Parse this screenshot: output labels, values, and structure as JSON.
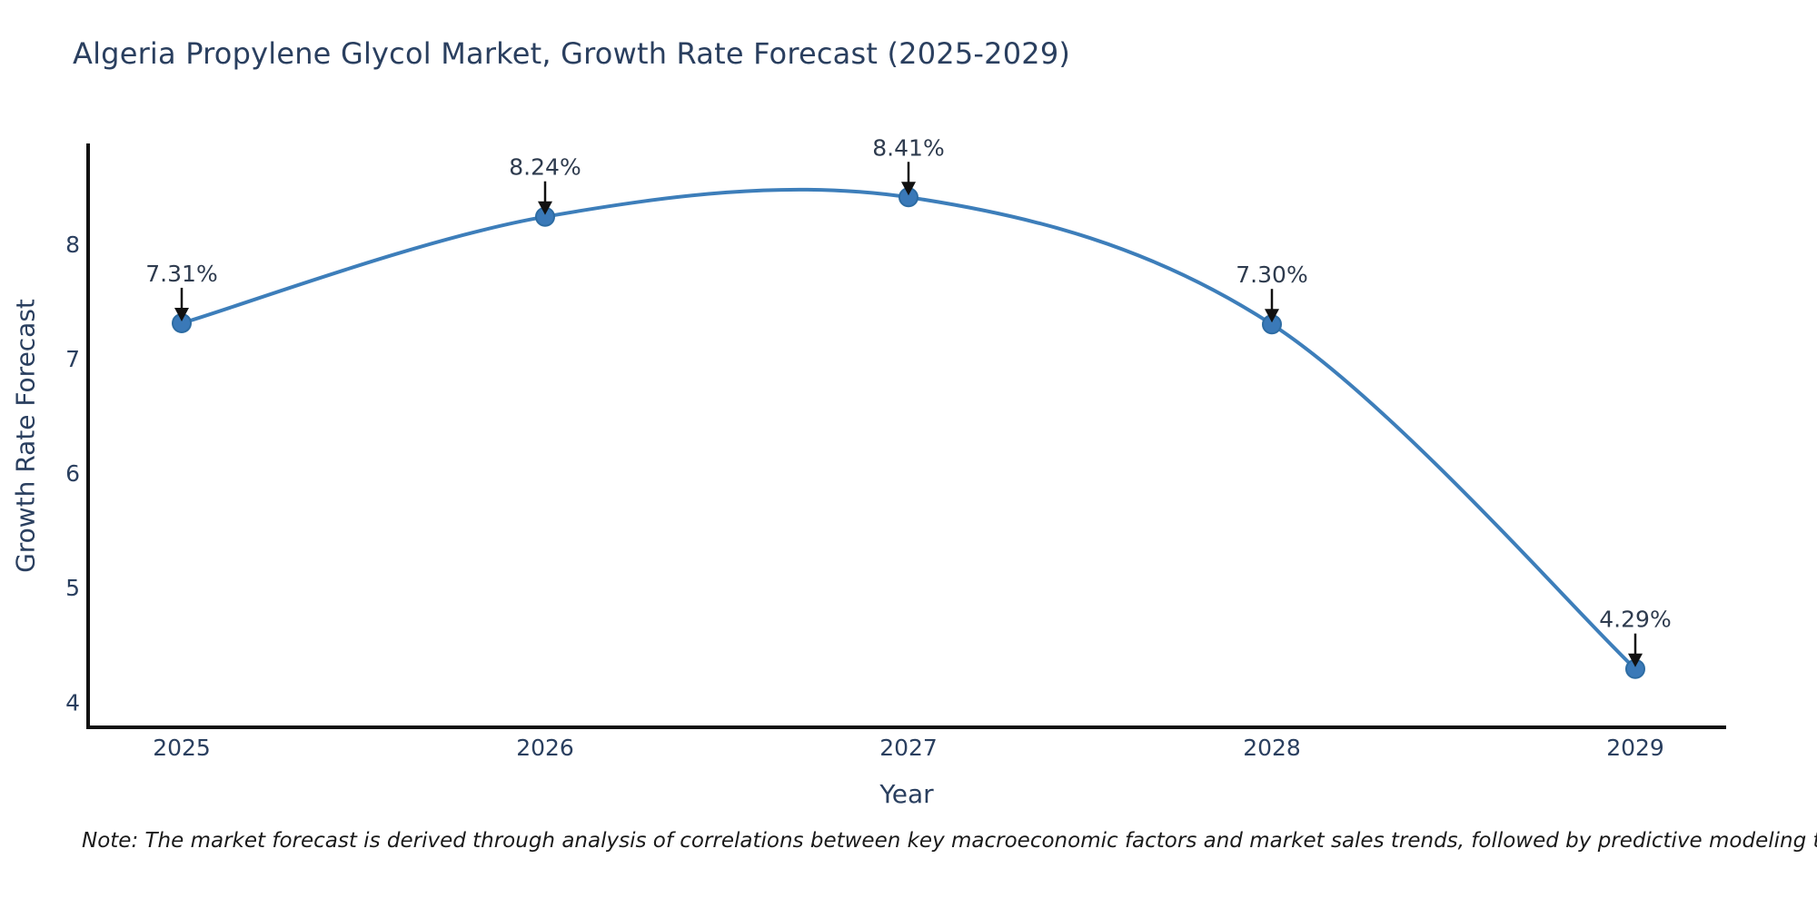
{
  "page": {
    "background": "#ffffff"
  },
  "chart_data": {
    "type": "line",
    "title": "Algeria Propylene Glycol Market, Growth Rate Forecast (2025-2029)",
    "xlabel": "Year",
    "ylabel": "Growth Rate Forecast",
    "x": [
      2025,
      2026,
      2027,
      2028,
      2029
    ],
    "values": [
      7.31,
      8.24,
      8.41,
      7.3,
      4.29
    ],
    "point_labels": [
      "7.31%",
      "8.24%",
      "8.41%",
      "7.30%",
      "4.29%"
    ],
    "yticks": [
      4,
      5,
      6,
      7,
      8
    ],
    "ylim": [
      3.78,
      8.88
    ],
    "grid": false,
    "legend": false,
    "line_shape": "spline",
    "colors": {
      "line": "#3d7eba",
      "marker_fill": "#3a79b8",
      "marker_edge": "#2d6ca3",
      "axis": "#111111",
      "text": "#2a3f5f",
      "annotation_text": "#2e3b4e",
      "arrow": "#111111"
    }
  },
  "note": {
    "text": "Note: The market forecast is derived through analysis of correlations between key macroeconomic factors and market sales trends, followed by predictive modeling to project future sales."
  }
}
